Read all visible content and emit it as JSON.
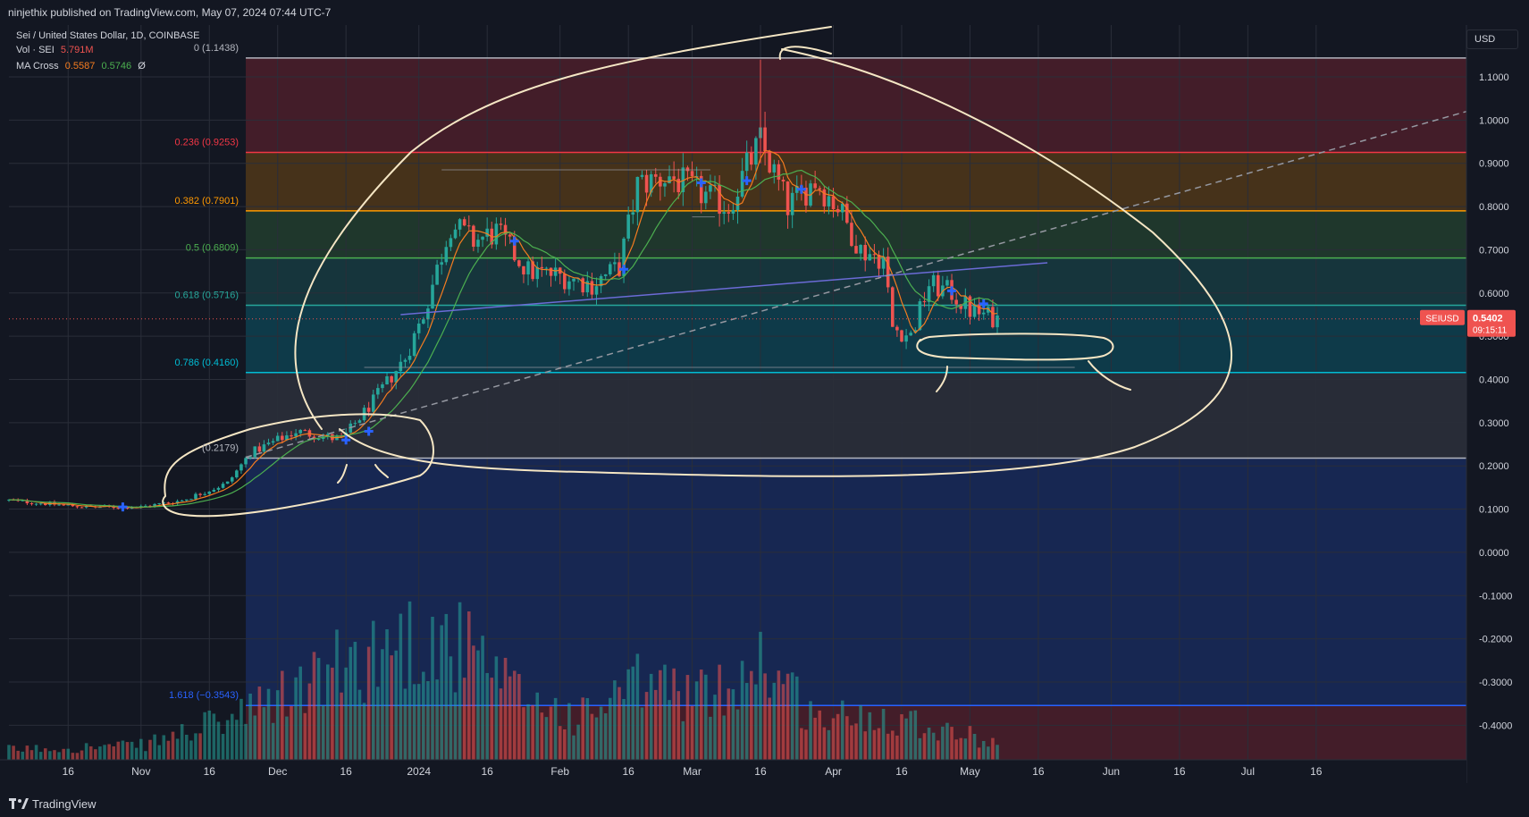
{
  "header": {
    "published_line": "ninjethix published on TradingView.com, May 07, 2024 07:44 UTC-7"
  },
  "legend": {
    "symbol_line": "Sei / United States Dollar, 1D, COINBASE",
    "vol_label": "Vol · SEI",
    "vol_value": "5.791M",
    "ma_label": "MA Cross",
    "ma_fast": "0.5587",
    "ma_slow": "0.5746",
    "ma_extra": "Ø"
  },
  "currency": "USD",
  "price_tag": {
    "symbol": "SEIUSD",
    "price": "0.5402",
    "countdown": "09:15:11",
    "value": 0.5402
  },
  "footer": {
    "brand": "TradingView"
  },
  "colors": {
    "background": "#131722",
    "up": "#26a69a",
    "down": "#ef5350",
    "ma_fast": "#f57c20",
    "ma_slow": "#4caf50",
    "annotation": "#f5e6c4",
    "trendline": "#6b6bd6"
  },
  "chart_data": {
    "type": "candlestick",
    "symbol": "SEIUSD",
    "interval": "1D",
    "y_axis": {
      "range": [
        -0.48,
        1.22
      ],
      "ticks": [
        1.1,
        1.0,
        0.9,
        0.8,
        0.7,
        0.6,
        0.5,
        0.4,
        0.3,
        0.2,
        0.1,
        0.0,
        -0.1,
        -0.2,
        -0.3,
        -0.4
      ],
      "tick_labels": [
        "1.1000",
        "1.0000",
        "0.9000",
        "0.8000",
        "0.7000",
        "0.6000",
        "0.5000",
        "0.4000",
        "0.3000",
        "0.2000",
        "0.1000",
        "0.0000",
        "-0.1000",
        "-0.2000",
        "-0.3000",
        "-0.4000"
      ],
      "position": "right"
    },
    "x_axis": {
      "range": [
        "2023-10-03",
        "2024-08-18"
      ],
      "ticks": [
        {
          "date": "2023-10-16",
          "label": "16"
        },
        {
          "date": "2023-11-01",
          "label": "Nov"
        },
        {
          "date": "2023-11-16",
          "label": "16"
        },
        {
          "date": "2023-12-01",
          "label": "Dec"
        },
        {
          "date": "2023-12-16",
          "label": "16"
        },
        {
          "date": "2024-01-01",
          "label": "2024"
        },
        {
          "date": "2024-01-16",
          "label": "16"
        },
        {
          "date": "2024-02-01",
          "label": "Feb"
        },
        {
          "date": "2024-02-16",
          "label": "16"
        },
        {
          "date": "2024-03-01",
          "label": "Mar"
        },
        {
          "date": "2024-03-16",
          "label": "16"
        },
        {
          "date": "2024-04-01",
          "label": "Apr"
        },
        {
          "date": "2024-04-16",
          "label": "16"
        },
        {
          "date": "2024-05-01",
          "label": "May"
        },
        {
          "date": "2024-05-16",
          "label": "16"
        },
        {
          "date": "2024-06-01",
          "label": "Jun"
        },
        {
          "date": "2024-06-16",
          "label": "16"
        },
        {
          "date": "2024-07-01",
          "label": "Jul"
        },
        {
          "date": "2024-07-16",
          "label": "16"
        }
      ]
    },
    "grid": true,
    "price_path": [
      [
        "2023-10-03",
        0.12
      ],
      [
        "2023-10-20",
        0.105
      ],
      [
        "2023-11-01",
        0.105
      ],
      [
        "2023-11-10",
        0.12
      ],
      [
        "2023-11-20",
        0.16
      ],
      [
        "2023-11-25",
        0.23
      ],
      [
        "2023-12-05",
        0.28
      ],
      [
        "2023-12-15",
        0.26
      ],
      [
        "2023-12-22",
        0.35
      ],
      [
        "2023-12-29",
        0.45
      ],
      [
        "2024-01-02",
        0.55
      ],
      [
        "2024-01-08",
        0.76
      ],
      [
        "2024-01-13",
        0.72
      ],
      [
        "2024-01-18",
        0.74
      ],
      [
        "2024-01-25",
        0.65
      ],
      [
        "2024-02-01",
        0.64
      ],
      [
        "2024-02-08",
        0.62
      ],
      [
        "2024-02-14",
        0.66
      ],
      [
        "2024-02-18",
        0.85
      ],
      [
        "2024-02-25",
        0.87
      ],
      [
        "2024-03-03",
        0.83
      ],
      [
        "2024-03-09",
        0.8
      ],
      [
        "2024-03-13",
        0.89
      ],
      [
        "2024-03-16",
        0.95
      ],
      [
        "2024-03-22",
        0.8
      ],
      [
        "2024-03-28",
        0.86
      ],
      [
        "2024-04-02",
        0.8
      ],
      [
        "2024-04-07",
        0.7
      ],
      [
        "2024-04-12",
        0.68
      ],
      [
        "2024-04-14",
        0.52
      ],
      [
        "2024-04-18",
        0.5
      ],
      [
        "2024-04-22",
        0.62
      ],
      [
        "2024-04-27",
        0.6
      ],
      [
        "2024-05-01",
        0.56
      ],
      [
        "2024-05-07",
        0.54
      ]
    ],
    "volume_path": [
      [
        "2023-10-03",
        0.05
      ],
      [
        "2023-11-01",
        0.07
      ],
      [
        "2023-11-24",
        0.22
      ],
      [
        "2023-12-15",
        0.45
      ],
      [
        "2023-12-25",
        0.55
      ],
      [
        "2024-01-02",
        0.6
      ],
      [
        "2024-01-10",
        0.55
      ],
      [
        "2024-01-20",
        0.35
      ],
      [
        "2024-02-05",
        0.2
      ],
      [
        "2024-02-20",
        0.38
      ],
      [
        "2024-03-05",
        0.3
      ],
      [
        "2024-03-16",
        0.5
      ],
      [
        "2024-03-28",
        0.2
      ],
      [
        "2024-04-14",
        0.22
      ],
      [
        "2024-05-07",
        0.08
      ]
    ],
    "fibonacci": [
      {
        "label": "0 (1.1438)",
        "level": 1.1438,
        "color": "#b2b5be"
      },
      {
        "label": "0.236 (0.9253)",
        "level": 0.9253,
        "color": "#f23645"
      },
      {
        "label": "0.382 (0.7901)",
        "level": 0.7901,
        "color": "#ff9800"
      },
      {
        "label": "0.5 (0.6809)",
        "level": 0.6809,
        "color": "#4caf50"
      },
      {
        "label": "0.618 (0.5716)",
        "level": 0.5716,
        "color": "#26a69a"
      },
      {
        "label": "0.786 (0.4160)",
        "level": 0.416,
        "color": "#00bcd4"
      },
      {
        "label": "(0.2179)",
        "level": 0.2179,
        "color": "#b2b5be"
      },
      {
        "label": "1.618 (−0.3543)",
        "level": -0.3543,
        "color": "#2962ff"
      }
    ],
    "fib_zones": [
      {
        "from": 1.1438,
        "to": 0.9253,
        "color": "#f23645"
      },
      {
        "from": 0.9253,
        "to": 0.7901,
        "color": "#ff9800"
      },
      {
        "from": 0.7901,
        "to": 0.6809,
        "color": "#4caf50"
      },
      {
        "from": 0.6809,
        "to": 0.5716,
        "color": "#26a69a"
      },
      {
        "from": 0.5716,
        "to": 0.416,
        "color": "#00bcd4"
      },
      {
        "from": 0.416,
        "to": 0.2179,
        "color": "#787b86"
      },
      {
        "from": 0.2179,
        "to": -0.3543,
        "color": "#2962ff"
      },
      {
        "from": -0.3543,
        "to": -0.48,
        "color": "#f23645"
      }
    ],
    "fib_start_date": "2023-11-24",
    "trendlines": [
      {
        "from": [
          "2023-12-28",
          0.55
        ],
        "to": [
          "2024-05-18",
          0.67
        ],
        "color": "#6b6bd6",
        "style": "solid"
      },
      {
        "from": [
          "2023-11-24",
          0.22
        ],
        "to": [
          "2024-08-18",
          1.02
        ],
        "color": "#9598a1",
        "style": "dashed"
      }
    ],
    "horizontal_segments": [
      {
        "from": "2024-01-06",
        "to": "2024-03-05",
        "level": 0.885
      },
      {
        "from": "2024-03-01",
        "to": "2024-03-06",
        "level": 0.776
      },
      {
        "from": "2023-12-20",
        "to": "2024-05-24",
        "level": 0.428
      }
    ],
    "cross_markers": [
      [
        "2023-10-28",
        0.105
      ],
      [
        "2023-12-16",
        0.26
      ],
      [
        "2023-12-21",
        0.28
      ],
      [
        "2024-01-22",
        0.72
      ],
      [
        "2024-02-15",
        0.655
      ],
      [
        "2024-03-03",
        0.855
      ],
      [
        "2024-03-13",
        0.86
      ],
      [
        "2024-03-25",
        0.84
      ],
      [
        "2024-04-27",
        0.605
      ],
      [
        "2024-05-04",
        0.575
      ]
    ],
    "annotations": "hand-drawn circles"
  }
}
